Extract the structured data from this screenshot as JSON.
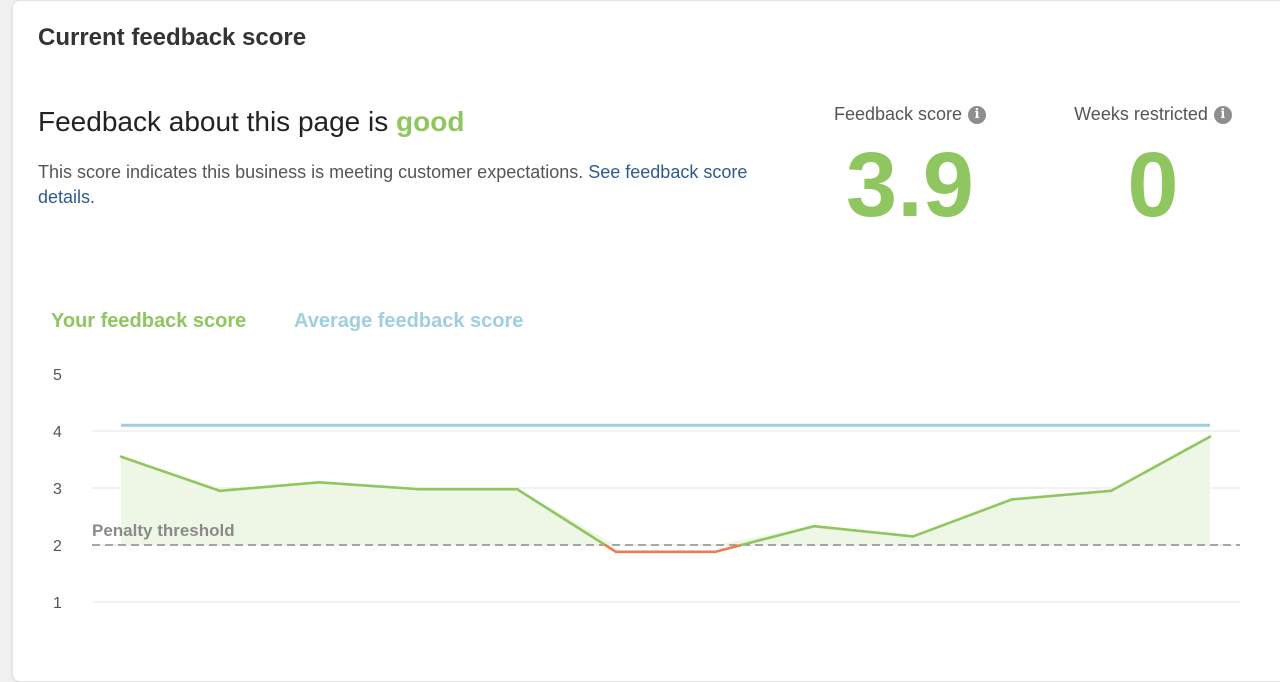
{
  "card": {
    "title": "Current feedback score"
  },
  "summary": {
    "headline_prefix": "Feedback about this page is ",
    "headline_status": "good",
    "description": "This score indicates this business is meeting customer expectations. ",
    "link_text": "See feedback score details."
  },
  "metrics": [
    {
      "label": "Feedback score",
      "value": "3.9"
    },
    {
      "label": "Weeks restricted",
      "value": "0"
    }
  ],
  "icons": {
    "info": "info-icon"
  },
  "colors": {
    "good": "#8fc65f",
    "average": "#9fcfdf",
    "below_threshold": "#ee7c52",
    "threshold_line": "#8a8a8a",
    "area_fill": "#eef6e6",
    "link": "#2d5b8c"
  },
  "chart_data": {
    "type": "line",
    "legend": [
      "Your feedback score",
      "Average feedback score"
    ],
    "legend_colors": [
      "#8fc65f",
      "#9fcfdf"
    ],
    "y_ticks": [
      5,
      4,
      3,
      2,
      1
    ],
    "ylim": [
      1,
      5
    ],
    "series": [
      {
        "name": "Your feedback score",
        "values": [
          3.55,
          2.95,
          3.1,
          2.98,
          2.98,
          1.88,
          1.88,
          2.33,
          2.15,
          2.8,
          2.95,
          3.9
        ]
      },
      {
        "name": "Average feedback score",
        "values": [
          4.1,
          4.1,
          4.1,
          4.1,
          4.1,
          4.1,
          4.1,
          4.1,
          4.1,
          4.1,
          4.1,
          4.1
        ]
      }
    ],
    "threshold": {
      "label": "Penalty threshold",
      "value": 2
    },
    "grid": true
  }
}
